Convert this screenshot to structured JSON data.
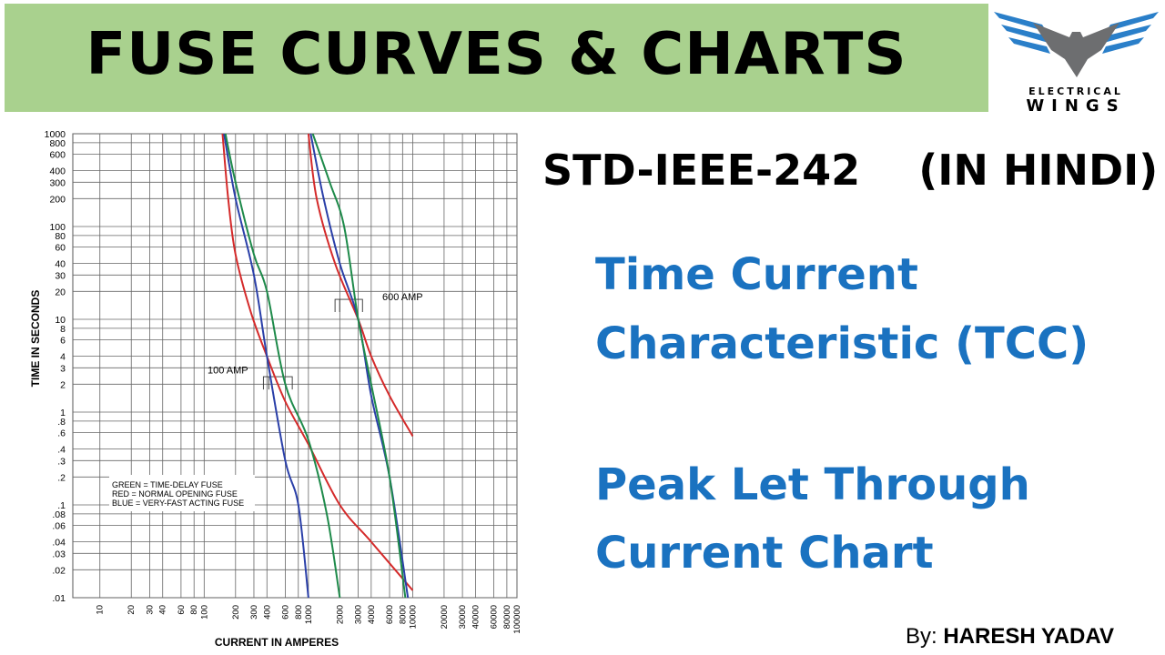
{
  "header": {
    "title": "FUSE CURVES & CHARTS"
  },
  "logo": {
    "line1": "ELECTRICAL",
    "line2": "WINGS",
    "colors": {
      "wings": "#2a7fc9",
      "body": "#6d6e70"
    }
  },
  "standard": "STD-IEEE-242    (IN HINDI)",
  "topics": [
    "Time Current",
    "Characteristic (TCC)",
    "Peak Let Through",
    "Current Chart"
  ],
  "author": {
    "prefix": "By: ",
    "name": "HARESH YADAV"
  },
  "colors": {
    "banner": "#a9d18e",
    "topic_text": "#1a72c0"
  },
  "chart_data": {
    "type": "line",
    "xlabel": "CURRENT IN AMPERES",
    "ylabel": "TIME IN SECONDS",
    "xscale": "log",
    "yscale": "log",
    "xlim": [
      5.5,
      100000
    ],
    "ylim": [
      0.01,
      1000
    ],
    "grid": true,
    "xticks": [
      "10",
      "20",
      "30",
      "40",
      "60",
      "80",
      "100",
      "200",
      "300",
      "400",
      "600",
      "800",
      "1000",
      "2000",
      "3000",
      "4000",
      "6000",
      "8000",
      "10000",
      "20000",
      "30000",
      "40000",
      "60000",
      "80000",
      "100000"
    ],
    "yticks": [
      "1000",
      "800",
      "600",
      "400",
      "300",
      "200",
      "100",
      "80",
      "60",
      "40",
      "30",
      "20",
      "10",
      "8",
      "6",
      "4",
      "3",
      "2",
      "1",
      ".8",
      ".6",
      ".4",
      ".3",
      ".2",
      ".1",
      ".08",
      ".06",
      ".04",
      ".03",
      ".02",
      ".01"
    ],
    "legend_text": [
      "GREEN = TIME-DELAY FUSE",
      "RED   = NORMAL OPENING FUSE",
      "BLUE  = VERY-FAST ACTING FUSE"
    ],
    "annotations": [
      "100 AMP",
      "600 AMP"
    ],
    "series": [
      {
        "color": "#d42a2a",
        "group": "100 AMP",
        "points": [
          [
            150,
            1000
          ],
          [
            170,
            200
          ],
          [
            200,
            50
          ],
          [
            280,
            12
          ],
          [
            400,
            4
          ],
          [
            600,
            1.3
          ],
          [
            1000,
            0.45
          ],
          [
            2000,
            0.1
          ],
          [
            4000,
            0.04
          ],
          [
            10000,
            0.012
          ]
        ]
      },
      {
        "color": "#2a3fa8",
        "group": "100 AMP",
        "points": [
          [
            155,
            1000
          ],
          [
            200,
            200
          ],
          [
            300,
            30
          ],
          [
            400,
            4
          ],
          [
            600,
            0.3
          ],
          [
            800,
            0.1
          ],
          [
            1000,
            0.01
          ]
        ]
      },
      {
        "color": "#1e8a4a",
        "group": "100 AMP",
        "points": [
          [
            160,
            1000
          ],
          [
            200,
            300
          ],
          [
            300,
            50
          ],
          [
            400,
            20
          ],
          [
            600,
            2
          ],
          [
            1000,
            0.5
          ],
          [
            1500,
            0.08
          ],
          [
            2000,
            0.01
          ]
        ]
      },
      {
        "color": "#d42a2a",
        "group": "600 AMP",
        "points": [
          [
            1000,
            1000
          ],
          [
            1200,
            200
          ],
          [
            1800,
            40
          ],
          [
            3000,
            10
          ],
          [
            4000,
            4
          ],
          [
            6000,
            1.5
          ],
          [
            10000,
            0.55
          ]
        ]
      },
      {
        "color": "#2a3fa8",
        "group": "600 AMP",
        "points": [
          [
            1050,
            1000
          ],
          [
            1400,
            200
          ],
          [
            2000,
            40
          ],
          [
            3000,
            10
          ],
          [
            4000,
            1.5
          ],
          [
            6000,
            0.2
          ],
          [
            9000,
            0.01
          ]
        ]
      },
      {
        "color": "#1e8a4a",
        "group": "600 AMP",
        "points": [
          [
            1100,
            1000
          ],
          [
            1600,
            300
          ],
          [
            2200,
            100
          ],
          [
            3000,
            10
          ],
          [
            4000,
            2
          ],
          [
            6000,
            0.2
          ],
          [
            8500,
            0.01
          ]
        ]
      }
    ]
  }
}
